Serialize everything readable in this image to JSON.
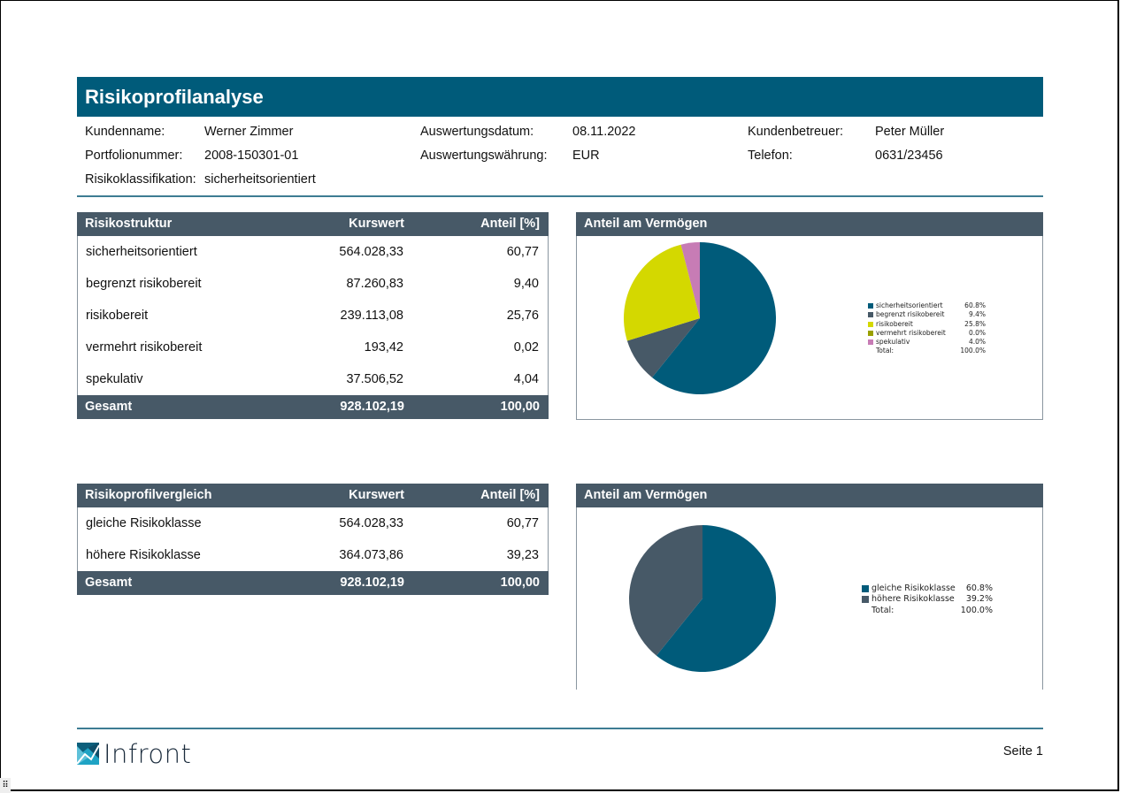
{
  "header": {
    "title": "Risikoprofilanalyse"
  },
  "info": {
    "customer_name_label": "Kundenname:",
    "customer_name": "Werner Zimmer",
    "portfolio_number_label": "Portfolionummer:",
    "portfolio_number": "2008-150301-01",
    "risk_class_label": "Risikoklassifikation:",
    "risk_class": "sicherheitsorientiert",
    "eval_date_label": "Auswertungsdatum:",
    "eval_date": "08.11.2022",
    "eval_currency_label": "Auswertungswährung:",
    "eval_currency": "EUR",
    "advisor_label": "Kundenbetreuer:",
    "advisor": "Peter Müller",
    "phone_label": "Telefon:",
    "phone": "0631/23456"
  },
  "risk_structure_table": {
    "headers": [
      "Risikostruktur",
      "Kurswert",
      "Anteil [%]"
    ],
    "rows": [
      {
        "name": "sicherheitsorientiert",
        "value": "564.028,33",
        "share": "60,77"
      },
      {
        "name": "begrenzt risikobereit",
        "value": "87.260,83",
        "share": "9,40"
      },
      {
        "name": "risikobereit",
        "value": "239.113,08",
        "share": "25,76"
      },
      {
        "name": "vermehrt risikobereit",
        "value": "193,42",
        "share": "0,02"
      },
      {
        "name": "spekulativ",
        "value": "37.506,52",
        "share": "4,04"
      }
    ],
    "total": {
      "name": "Gesamt",
      "value": "928.102,19",
      "share": "100,00"
    }
  },
  "risk_comparison_table": {
    "headers": [
      "Risikoprofilvergleich",
      "Kurswert",
      "Anteil [%]"
    ],
    "rows": [
      {
        "name": "gleiche Risikoklasse",
        "value": "564.028,33",
        "share": "60,77"
      },
      {
        "name": "höhere Risikoklasse",
        "value": "364.073,86",
        "share": "39,23"
      }
    ],
    "total": {
      "name": "Gesamt",
      "value": "928.102,19",
      "share": "100,00"
    }
  },
  "chart_data": [
    {
      "type": "pie",
      "title": "Anteil am Vermögen",
      "categories": [
        "sicherheitsorientiert",
        "begrenzt risikobereit",
        "risikobereit",
        "vermehrt risikobereit",
        "spekulativ"
      ],
      "values": [
        60.8,
        9.4,
        25.8,
        0.0,
        4.0
      ],
      "value_labels": [
        "60.8%",
        "9.4%",
        "25.8%",
        "0.0%",
        "4.0%"
      ],
      "colors": [
        "#005b7a",
        "#475967",
        "#d4d800",
        "#9aa000",
        "#c77cb5"
      ],
      "total_label": "Total:",
      "total_value": "100.0%",
      "legend": "right"
    },
    {
      "type": "pie",
      "title": "Anteil am Vermögen",
      "categories": [
        "gleiche Risikoklasse",
        "höhere Risikoklasse"
      ],
      "values": [
        60.8,
        39.2
      ],
      "value_labels": [
        "60.8%",
        "39.2%"
      ],
      "colors": [
        "#005b7a",
        "#475967"
      ],
      "total_label": "Total:",
      "total_value": "100.0%",
      "legend": "right"
    }
  ],
  "footer": {
    "logo_text": "Infront",
    "page_label": "Seite 1"
  },
  "colors": {
    "brand": "#005b7a",
    "header_dark": "#475967",
    "rule": "#3d7c93"
  }
}
